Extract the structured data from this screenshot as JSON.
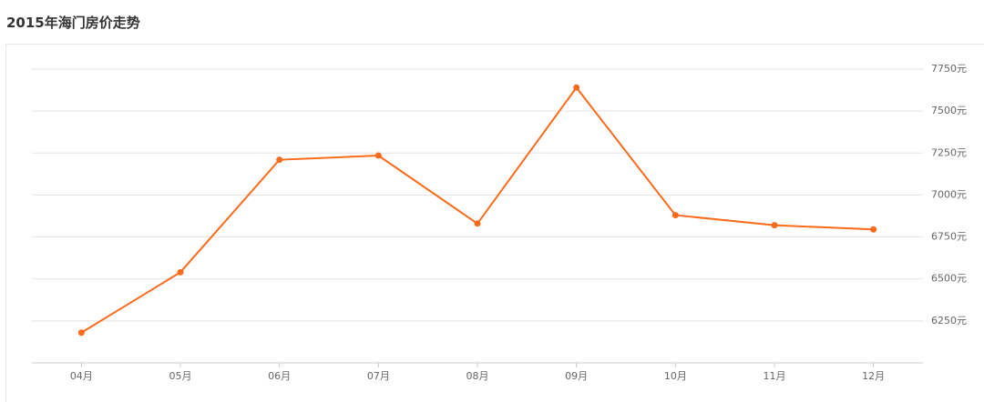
{
  "chart_data": {
    "type": "line",
    "title": "2015年海门房价走势",
    "categories": [
      "04月",
      "05月",
      "06月",
      "07月",
      "08月",
      "09月",
      "10月",
      "11月",
      "12月"
    ],
    "series": [
      {
        "name": "房价",
        "color": "#f96a1b",
        "values": [
          6180,
          6540,
          7210,
          7235,
          6830,
          7640,
          6880,
          6820,
          6795
        ]
      }
    ],
    "ylim": [
      6000,
      7750
    ],
    "yticks": [
      {
        "value": 6250,
        "label": "6250元"
      },
      {
        "value": 6500,
        "label": "6500元"
      },
      {
        "value": 6750,
        "label": "6750元"
      },
      {
        "value": 7000,
        "label": "7000元"
      },
      {
        "value": 7250,
        "label": "7250元"
      },
      {
        "value": 7500,
        "label": "7500元"
      },
      {
        "value": 7750,
        "label": "7750元"
      }
    ],
    "grid": true
  }
}
